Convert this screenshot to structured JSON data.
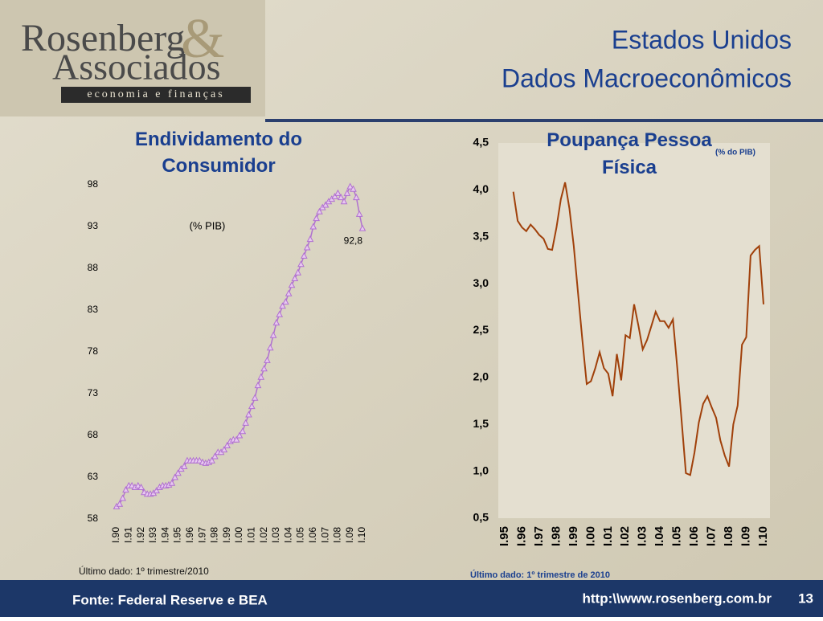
{
  "header": {
    "title_line1": "Estados Unidos",
    "title_line2": "Dados Macroeconômicos"
  },
  "logo": {
    "name1": "Rosenberg",
    "amp": "&",
    "name2": "Associados",
    "tagline": "economia e finanças"
  },
  "footer": {
    "source": "Fonte: Federal Reserve e BEA",
    "url": "http:\\\\www.rosenberg.com.br",
    "page": "13"
  },
  "chart_data": [
    {
      "type": "line",
      "title": "Endividamento do Consumidor",
      "annotation": "(% PIB)",
      "note": "Último dado: 1º trimestre/2010",
      "color": "#b070d0",
      "marker": "triangle",
      "categories": [
        "I.90",
        null,
        null,
        null,
        "I.91",
        null,
        null,
        null,
        "I.92",
        null,
        null,
        null,
        "I.93",
        null,
        null,
        null,
        "I.94",
        null,
        null,
        null,
        "I.95",
        null,
        null,
        null,
        "I.96",
        null,
        null,
        null,
        "I.97",
        null,
        null,
        null,
        "I.98",
        null,
        null,
        null,
        "I.99",
        null,
        null,
        null,
        "I.00",
        null,
        null,
        null,
        "I.01",
        null,
        null,
        null,
        "I.02",
        null,
        null,
        null,
        "I.03",
        null,
        null,
        null,
        "I.04",
        null,
        null,
        null,
        "I.05",
        null,
        null,
        null,
        "I.06",
        null,
        null,
        null,
        "I.07",
        null,
        null,
        null,
        "I.08",
        null,
        null,
        null,
        "I.09",
        null,
        null,
        null,
        "I.10"
      ],
      "values": [
        59.5,
        59.8,
        60.5,
        61.5,
        62,
        62,
        61.8,
        62,
        61.8,
        61.2,
        61,
        61,
        61.1,
        61.4,
        61.8,
        62,
        62,
        62.1,
        62.3,
        63,
        63.5,
        64,
        64.3,
        65,
        65,
        65,
        65,
        65,
        64.8,
        64.7,
        64.8,
        65,
        65.5,
        66,
        66,
        66.3,
        66.8,
        67.3,
        67.5,
        67.5,
        68,
        68.5,
        69.5,
        70.5,
        71.5,
        72.5,
        74,
        75,
        76,
        77,
        78.5,
        80,
        81.5,
        82.5,
        83.5,
        84,
        85,
        86,
        86.8,
        87.5,
        88.5,
        89.5,
        90.5,
        91.5,
        93,
        94,
        94.8,
        95.3,
        95.6,
        96,
        96.3,
        96.6,
        97,
        96.5,
        96,
        97,
        97.8,
        97.5,
        96.5,
        94.5,
        92.8
      ],
      "value_labels": [
        null,
        null,
        null,
        null,
        null,
        null,
        null,
        null,
        null,
        null,
        null,
        null,
        null,
        null,
        null,
        null,
        null,
        null,
        null,
        null,
        null,
        null,
        null,
        null,
        null,
        null,
        null,
        null,
        null,
        null,
        null,
        null,
        null,
        null,
        null,
        null,
        null,
        null,
        null,
        null,
        null,
        null,
        null,
        null,
        null,
        null,
        null,
        null,
        null,
        null,
        null,
        null,
        null,
        null,
        null,
        null,
        null,
        null,
        null,
        null,
        null,
        null,
        null,
        null,
        null,
        null,
        null,
        null,
        null,
        null,
        null,
        null,
        null,
        null,
        null,
        null,
        null,
        null,
        null,
        null,
        "92,8"
      ],
      "ylim": [
        58,
        98
      ],
      "yticks": [
        58,
        63,
        68,
        73,
        78,
        83,
        88,
        93,
        98
      ]
    },
    {
      "type": "line",
      "title": "Poupança Pessoa Física",
      "subtitle": "(% do PIB)",
      "note": "Último dado: 1º trimestre de 2010",
      "color": "#a0400a",
      "categories": [
        "I.95",
        null,
        null,
        null,
        "I.96",
        null,
        null,
        null,
        "I.97",
        null,
        null,
        null,
        "I.98",
        null,
        null,
        null,
        "I.99",
        null,
        null,
        null,
        "I.00",
        null,
        null,
        null,
        "I.01",
        null,
        null,
        null,
        "I.02",
        null,
        null,
        null,
        "I.03",
        null,
        null,
        null,
        "I.04",
        null,
        null,
        null,
        "I.05",
        null,
        null,
        null,
        "I.06",
        null,
        null,
        null,
        "I.07",
        null,
        null,
        null,
        "I.08",
        null,
        null,
        null,
        "I.09",
        null,
        null,
        null,
        "I.10"
      ],
      "values": [
        null,
        null,
        3.98,
        3.67,
        3.6,
        3.56,
        3.63,
        3.58,
        3.52,
        3.48,
        3.37,
        3.36,
        3.6,
        3.9,
        4.08,
        3.8,
        3.4,
        2.9,
        2.4,
        1.93,
        1.96,
        2.1,
        2.27,
        2.1,
        2.04,
        1.8,
        2.25,
        1.97,
        2.45,
        2.42,
        2.78,
        2.55,
        2.3,
        2.4,
        2.55,
        2.7,
        2.6,
        2.6,
        2.53,
        2.62,
        2.1,
        1.55,
        0.98,
        0.96,
        1.2,
        1.52,
        1.72,
        1.8,
        1.68,
        1.57,
        1.33,
        1.17,
        1.05,
        1.5,
        1.7,
        2.35,
        2.43,
        3.3,
        3.36,
        3.4,
        2.78
      ],
      "ylim": [
        0.5,
        4.5
      ],
      "yticks": [
        {
          "value": 0.5,
          "label": "0,5"
        },
        {
          "value": 1,
          "label": "1,0"
        },
        {
          "value": 1.5,
          "label": "1,5"
        },
        {
          "value": 2,
          "label": "2,0"
        },
        {
          "value": 2.5,
          "label": "2,5"
        },
        {
          "value": 3,
          "label": "3,0"
        },
        {
          "value": 3.5,
          "label": "3,5"
        },
        {
          "value": 4,
          "label": "4,0"
        },
        {
          "value": 4.5,
          "label": "4,5"
        }
      ]
    }
  ]
}
